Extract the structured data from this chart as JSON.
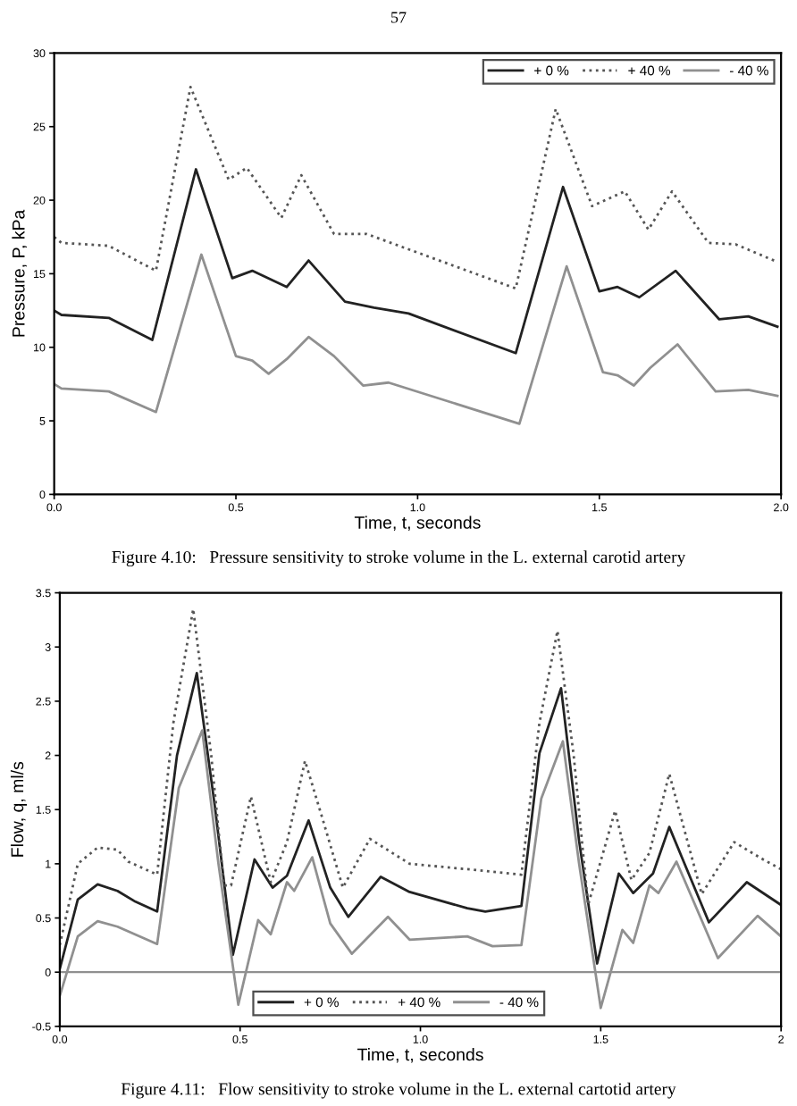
{
  "chart_data": [
    {
      "type": "line",
      "xlabel": "Time, t, seconds",
      "ylabel": "Pressure, P, kPa",
      "annotations": [
        "57",
        "Figure 4.10:   Pressure sensitivity to stroke volume in the L. external carotid artery"
      ],
      "xlim": [
        0,
        2
      ],
      "ylim": [
        0,
        30
      ],
      "xticks": [
        {
          "value": 0,
          "label": "0.0"
        },
        0.5,
        {
          "value": 1,
          "label": "1.0"
        },
        1.5,
        {
          "value": 2,
          "label": "2.0"
        }
      ],
      "yticks": [
        0,
        5,
        10,
        15,
        20,
        25,
        30
      ],
      "grid": false,
      "legend": "top right",
      "series": [
        {
          "name": "+ 0 %",
          "color": "#222222",
          "line_style": "solid",
          "x": [
            0,
            0.02,
            0.15,
            0.27,
            0.39,
            0.49,
            0.545,
            0.64,
            0.7,
            0.8,
            0.88,
            0.975,
            1.27,
            1.4,
            1.5,
            1.55,
            1.61,
            1.71,
            1.83,
            1.91,
            1.99
          ],
          "values": [
            12.5,
            12.2,
            12.0,
            10.5,
            22.1,
            14.7,
            15.2,
            14.1,
            15.9,
            13.1,
            12.7,
            12.3,
            9.6,
            20.9,
            13.8,
            14.1,
            13.4,
            15.2,
            11.9,
            12.1,
            11.4
          ]
        },
        {
          "name": "+ 40 %",
          "color": "#555555",
          "line_style": "dotted",
          "x": [
            0,
            0.02,
            0.15,
            0.28,
            0.375,
            0.48,
            0.53,
            0.625,
            0.68,
            0.77,
            0.86,
            1.27,
            1.38,
            1.48,
            1.57,
            1.635,
            1.7,
            1.8,
            1.875,
            1.99
          ],
          "values": [
            17.5,
            17.1,
            16.9,
            15.2,
            27.7,
            21.4,
            22.2,
            18.8,
            21.7,
            17.7,
            17.7,
            14.0,
            26.2,
            19.6,
            20.6,
            18.0,
            20.6,
            17.1,
            17.0,
            15.8
          ]
        },
        {
          "name": "- 40 %",
          "color": "#909090",
          "line_style": "solid",
          "x": [
            0,
            0.02,
            0.15,
            0.28,
            0.405,
            0.5,
            0.545,
            0.59,
            0.64,
            0.7,
            0.77,
            0.85,
            0.92,
            1.28,
            1.41,
            1.51,
            1.55,
            1.595,
            1.64,
            1.715,
            1.82,
            1.91,
            1.99
          ],
          "values": [
            7.5,
            7.2,
            7.0,
            5.6,
            16.3,
            9.4,
            9.1,
            8.2,
            9.2,
            10.7,
            9.4,
            7.4,
            7.6,
            4.8,
            15.5,
            8.3,
            8.1,
            7.4,
            8.6,
            10.2,
            7.0,
            7.1,
            6.7
          ]
        }
      ]
    },
    {
      "type": "line",
      "xlabel": "Time, t, seconds",
      "ylabel": "Flow, q, ml/s",
      "annotations": [
        "Figure 4.11:   Flow sensitivity to stroke volume in the L. external cartotid artery"
      ],
      "xlim": [
        0,
        2
      ],
      "ylim": [
        -0.5,
        3.5
      ],
      "xticks": [
        {
          "value": 0,
          "label": "0.0"
        },
        0.5,
        {
          "value": 1,
          "label": "1.0"
        },
        1.5,
        2
      ],
      "yticks": [
        -0.5,
        0,
        0.5,
        1,
        1.5,
        2,
        2.5,
        3,
        3.5
      ],
      "grid": false,
      "legend": "bottom",
      "ref_lines": [
        {
          "axis": "y",
          "value": 0,
          "color": "#909090"
        }
      ],
      "series": [
        {
          "name": "+ 0 %",
          "color": "#222222",
          "line_style": "solid",
          "x": [
            0,
            0.05,
            0.105,
            0.16,
            0.21,
            0.27,
            0.325,
            0.38,
            0.43,
            0.48,
            0.54,
            0.59,
            0.63,
            0.69,
            0.75,
            0.8,
            0.89,
            0.97,
            1.13,
            1.18,
            1.28,
            1.33,
            1.39,
            1.44,
            1.49,
            1.55,
            1.59,
            1.645,
            1.69,
            1.8,
            1.905,
            2.0
          ],
          "values": [
            0.03,
            0.67,
            0.81,
            0.75,
            0.65,
            0.56,
            2.0,
            2.76,
            1.53,
            0.16,
            1.04,
            0.78,
            0.89,
            1.4,
            0.78,
            0.51,
            0.88,
            0.74,
            0.59,
            0.56,
            0.61,
            2.02,
            2.62,
            1.21,
            0.08,
            0.91,
            0.73,
            0.91,
            1.34,
            0.46,
            0.83,
            0.62
          ]
        },
        {
          "name": "+ 40 %",
          "color": "#555555",
          "line_style": "dotted",
          "x": [
            0,
            0.05,
            0.105,
            0.16,
            0.19,
            0.27,
            0.315,
            0.37,
            0.42,
            0.455,
            0.475,
            0.53,
            0.585,
            0.63,
            0.68,
            0.73,
            0.785,
            0.86,
            0.97,
            1.13,
            1.28,
            1.33,
            1.38,
            1.425,
            1.465,
            1.54,
            1.585,
            1.635,
            1.69,
            1.78,
            1.87,
            1.945,
            2.0
          ],
          "values": [
            0.25,
            1.0,
            1.15,
            1.13,
            1.02,
            0.9,
            2.3,
            3.35,
            2.0,
            0.8,
            0.8,
            1.62,
            0.83,
            1.2,
            1.95,
            1.4,
            0.78,
            1.23,
            1.0,
            0.95,
            0.9,
            2.3,
            3.15,
            2.0,
            0.62,
            1.49,
            0.85,
            1.1,
            1.83,
            0.72,
            1.2,
            1.05,
            0.95
          ]
        },
        {
          "name": "- 40 %",
          "color": "#909090",
          "line_style": "solid",
          "x": [
            0,
            0.05,
            0.105,
            0.16,
            0.27,
            0.33,
            0.395,
            0.44,
            0.495,
            0.55,
            0.585,
            0.63,
            0.65,
            0.7,
            0.75,
            0.81,
            0.91,
            0.97,
            1.13,
            1.2,
            1.28,
            1.335,
            1.395,
            1.44,
            1.5,
            1.56,
            1.59,
            1.635,
            1.66,
            1.71,
            1.825,
            1.935,
            2.0
          ],
          "values": [
            -0.22,
            0.33,
            0.47,
            0.42,
            0.26,
            1.7,
            2.23,
            1.0,
            -0.3,
            0.48,
            0.35,
            0.83,
            0.75,
            1.06,
            0.45,
            0.17,
            0.51,
            0.3,
            0.33,
            0.24,
            0.25,
            1.6,
            2.13,
            1.0,
            -0.33,
            0.39,
            0.27,
            0.8,
            0.73,
            1.02,
            0.13,
            0.52,
            0.33
          ]
        }
      ]
    }
  ]
}
